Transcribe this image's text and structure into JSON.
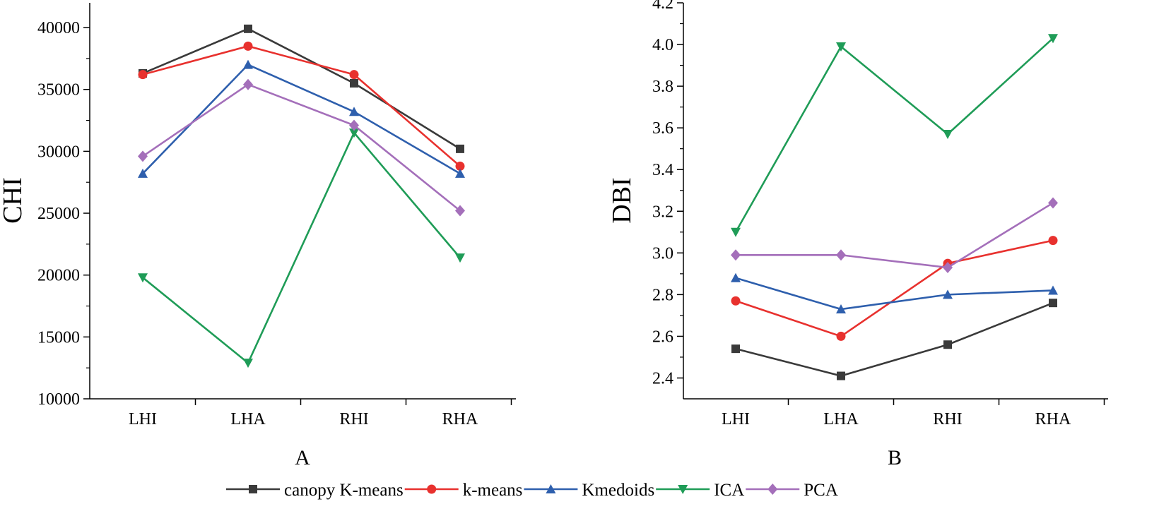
{
  "legend": {
    "placement": "bottom",
    "items": [
      {
        "label": "canopy K-means",
        "color": "#3a3a3a",
        "marker": "square"
      },
      {
        "label": "k-means",
        "color": "#e8312e",
        "marker": "circle"
      },
      {
        "label": "Kmedoids",
        "color": "#2e5fad",
        "marker": "triangle-up"
      },
      {
        "label": "ICA",
        "color": "#1f9c57",
        "marker": "triangle-down"
      },
      {
        "label": "PCA",
        "color": "#a46fba",
        "marker": "diamond"
      }
    ]
  },
  "chart_data": [
    {
      "type": "line",
      "panel_label": "A",
      "categories": [
        "LHI",
        "LHA",
        "RHI",
        "RHA"
      ],
      "ylabel": "CHI",
      "ylim": [
        10000,
        42000
      ],
      "yticks": [
        10000,
        15000,
        20000,
        25000,
        30000,
        35000,
        40000
      ],
      "series": [
        {
          "name": "canopy K-means",
          "values": [
            36300,
            39900,
            35500,
            30200
          ]
        },
        {
          "name": "k-means",
          "values": [
            36200,
            38500,
            36200,
            28800
          ]
        },
        {
          "name": "Kmedoids",
          "values": [
            28200,
            37000,
            33200,
            28200
          ]
        },
        {
          "name": "ICA",
          "values": [
            19800,
            12900,
            31500,
            21400
          ]
        },
        {
          "name": "PCA",
          "values": [
            29600,
            35400,
            32100,
            25200
          ]
        }
      ]
    },
    {
      "type": "line",
      "panel_label": "B",
      "categories": [
        "LHI",
        "LHA",
        "RHI",
        "RHA"
      ],
      "ylabel": "DBI",
      "ylim": [
        2.3,
        4.2
      ],
      "yticks": [
        "2.4",
        "2.6",
        "2.8",
        "3.0",
        "3.2",
        "3.4",
        "3.6",
        "3.8",
        "4.0",
        "4.2"
      ],
      "series": [
        {
          "name": "canopy K-means",
          "values": [
            2.54,
            2.41,
            2.56,
            2.76
          ]
        },
        {
          "name": "k-means",
          "values": [
            2.77,
            2.6,
            2.95,
            3.06
          ]
        },
        {
          "name": "Kmedoids",
          "values": [
            2.88,
            2.73,
            2.8,
            2.82
          ]
        },
        {
          "name": "ICA",
          "values": [
            3.1,
            3.99,
            3.57,
            4.03
          ]
        },
        {
          "name": "PCA",
          "values": [
            2.99,
            2.99,
            2.93,
            3.24
          ]
        }
      ]
    }
  ]
}
